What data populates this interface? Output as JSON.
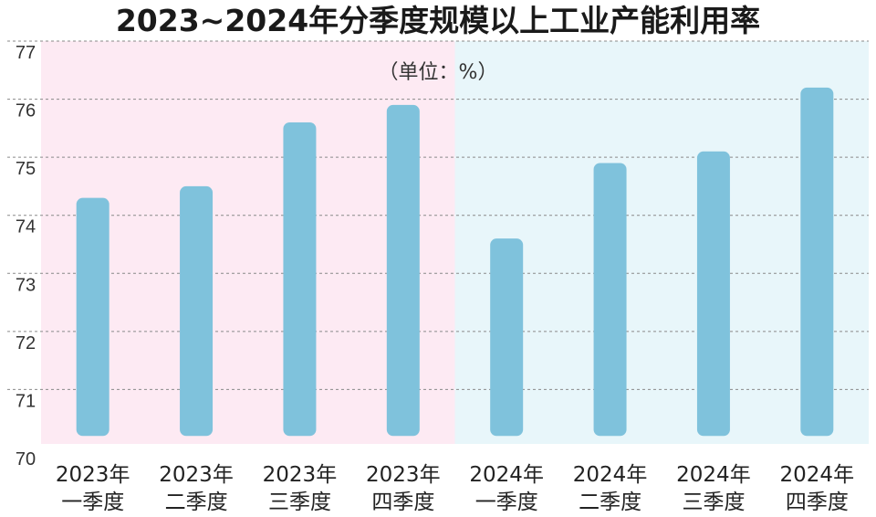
{
  "chart_data": {
    "type": "bar",
    "title": "2023~2024年分季度规模以上工业产能利用率",
    "unit_label": "（单位：%）",
    "categories": [
      [
        "2023年",
        "一季度"
      ],
      [
        "2023年",
        "二季度"
      ],
      [
        "2023年",
        "三季度"
      ],
      [
        "2023年",
        "四季度"
      ],
      [
        "2024年",
        "一季度"
      ],
      [
        "2024年",
        "二季度"
      ],
      [
        "2024年",
        "三季度"
      ],
      [
        "2024年",
        "四季度"
      ]
    ],
    "values": [
      74.3,
      74.5,
      75.6,
      75.9,
      73.6,
      74.9,
      75.1,
      76.2
    ],
    "ylim": [
      70,
      77
    ],
    "yticks": [
      70,
      71,
      72,
      73,
      74,
      75,
      76,
      77
    ],
    "grid": true,
    "colors": {
      "bar": "#7fc2dc",
      "band_2023": "#fdeaf3",
      "band_2024": "#e8f6fa"
    }
  }
}
